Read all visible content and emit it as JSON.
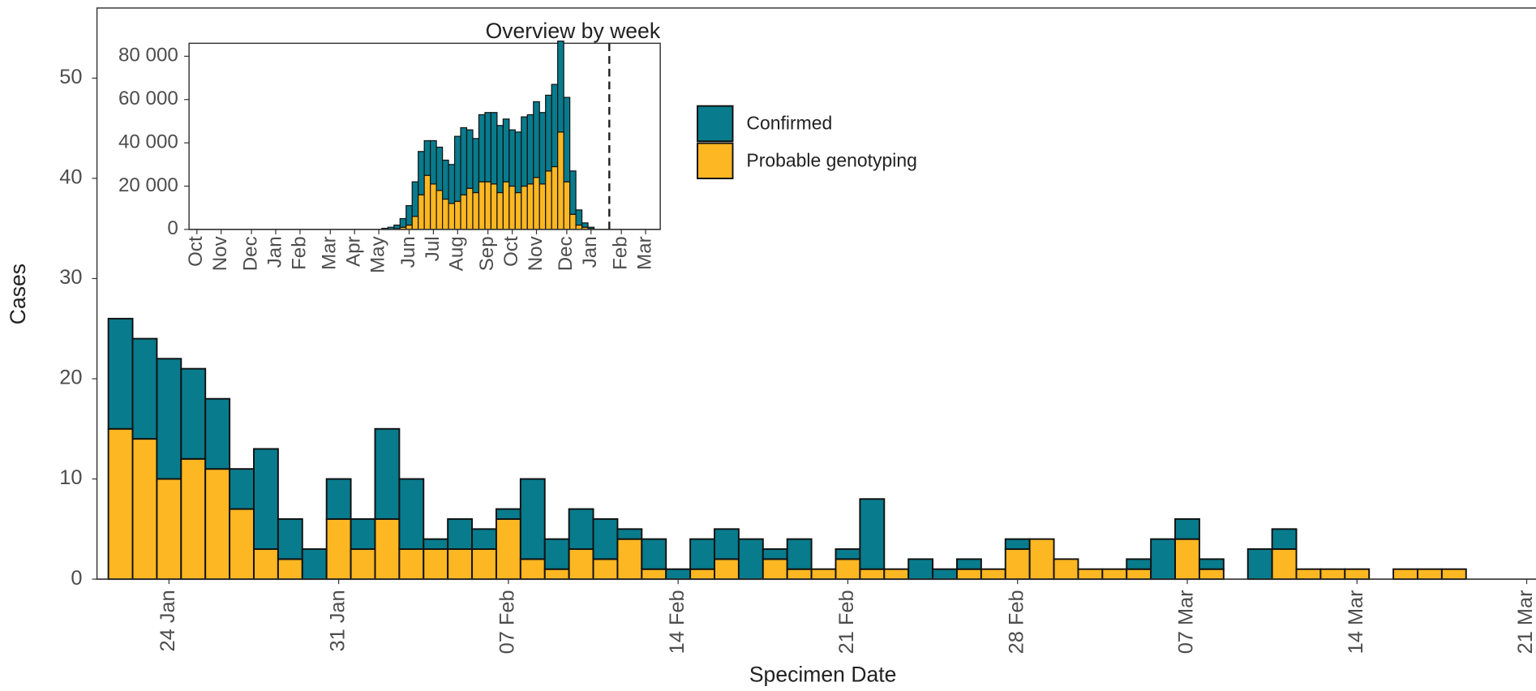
{
  "chart_data": [
    {
      "type": "bar",
      "stacked": true,
      "xlabel": "Specimen Date",
      "ylabel": "Cases",
      "categories": [
        null,
        null,
        "24 Jan",
        null,
        null,
        null,
        null,
        null,
        null,
        "31 Jan",
        null,
        null,
        null,
        null,
        null,
        null,
        "07 Feb",
        null,
        null,
        null,
        null,
        null,
        null,
        "14 Feb",
        null,
        null,
        null,
        null,
        null,
        null,
        "21 Feb",
        null,
        null,
        null,
        null,
        null,
        null,
        "28 Feb",
        null,
        null,
        null,
        null,
        null,
        null,
        "07 Mar",
        null,
        null,
        null,
        null,
        null,
        null,
        "14 Mar",
        null,
        null,
        null,
        null,
        null,
        null,
        "21 Mar"
      ],
      "series": [
        {
          "name": "Confirmed",
          "color": "#087b8c",
          "values": [
            11,
            10,
            12,
            9,
            7,
            4,
            10,
            4,
            3,
            4,
            3,
            9,
            7,
            1,
            3,
            2,
            1,
            8,
            3,
            4,
            4,
            1,
            3,
            1,
            3,
            3,
            4,
            1,
            3,
            0,
            1,
            7,
            0,
            2,
            1,
            1,
            0,
            1,
            0,
            0,
            0,
            0,
            1,
            4,
            2,
            1,
            0,
            3,
            2,
            0,
            0,
            0,
            0,
            0,
            0,
            0,
            null,
            null,
            null
          ]
        },
        {
          "name": "Probable genotyping",
          "color": "#fcb722",
          "values": [
            15,
            14,
            10,
            12,
            11,
            7,
            3,
            2,
            0,
            6,
            3,
            6,
            3,
            3,
            3,
            3,
            6,
            2,
            1,
            3,
            2,
            4,
            1,
            0,
            1,
            2,
            0,
            2,
            1,
            1,
            2,
            1,
            1,
            0,
            0,
            1,
            1,
            3,
            4,
            2,
            1,
            1,
            1,
            0,
            4,
            1,
            0,
            0,
            3,
            1,
            1,
            1,
            0,
            1,
            1,
            1,
            null,
            null,
            null
          ]
        }
      ],
      "ylim": [
        0,
        57
      ],
      "yticks": [
        0,
        10,
        20,
        30,
        40,
        50
      ]
    },
    {
      "type": "bar",
      "stacked": true,
      "title": "Overview by week",
      "categories": [
        "Oct",
        null,
        null,
        null,
        "Nov",
        null,
        null,
        null,
        null,
        "Dec",
        null,
        null,
        null,
        "Jan",
        null,
        null,
        null,
        "Feb",
        null,
        null,
        null,
        null,
        "Mar",
        null,
        null,
        null,
        "Apr",
        null,
        null,
        null,
        "May",
        null,
        null,
        null,
        null,
        "Jun",
        null,
        null,
        null,
        "Jul",
        null,
        null,
        null,
        "Aug",
        null,
        null,
        null,
        null,
        "Sep",
        null,
        null,
        null,
        "Oct",
        null,
        null,
        null,
        "Nov",
        null,
        null,
        null,
        null,
        "Dec",
        null,
        null,
        null,
        "Jan",
        null,
        null,
        null,
        null,
        "Feb",
        null,
        null,
        null,
        "Mar",
        null
      ],
      "series": [
        {
          "color": "#087b8c",
          "values": [
            null,
            null,
            null,
            null,
            null,
            null,
            null,
            null,
            null,
            null,
            null,
            null,
            null,
            null,
            null,
            null,
            null,
            null,
            null,
            null,
            null,
            null,
            null,
            null,
            null,
            null,
            null,
            null,
            null,
            null,
            null,
            500,
            1000,
            1700,
            4000,
            9000,
            16000,
            20000,
            16000,
            20000,
            20000,
            18000,
            18000,
            30000,
            31000,
            27000,
            25000,
            31000,
            32000,
            33000,
            31000,
            29000,
            26000,
            28000,
            32000,
            32000,
            35000,
            33000,
            35000,
            38000,
            42000,
            39000,
            20000,
            7000,
            2000,
            700,
            null,
            null,
            null,
            null,
            null,
            null,
            null,
            null,
            null,
            null
          ]
        },
        {
          "color": "#fcb722",
          "values": [
            null,
            null,
            null,
            null,
            null,
            null,
            null,
            null,
            null,
            null,
            null,
            null,
            null,
            null,
            null,
            null,
            null,
            null,
            null,
            null,
            null,
            null,
            null,
            null,
            null,
            null,
            null,
            null,
            null,
            null,
            null,
            0,
            0,
            300,
            1000,
            2000,
            6000,
            16000,
            25000,
            21000,
            18000,
            14000,
            12000,
            13000,
            16000,
            19000,
            17000,
            22000,
            22000,
            21000,
            17000,
            22000,
            20000,
            17000,
            20000,
            21000,
            24000,
            21000,
            27000,
            29000,
            45000,
            22000,
            7000,
            2000,
            1000,
            300,
            null,
            null,
            null,
            null,
            null,
            null,
            null,
            null,
            null,
            null
          ]
        }
      ],
      "ylim": [
        0,
        86000
      ],
      "yticks": [
        0,
        {
          "value": 20000,
          "label": "20 000"
        },
        {
          "value": 40000,
          "label": "40 000"
        },
        {
          "value": 60000,
          "label": "60 000"
        },
        {
          "value": 80000,
          "label": "80 000"
        }
      ]
    }
  ]
}
